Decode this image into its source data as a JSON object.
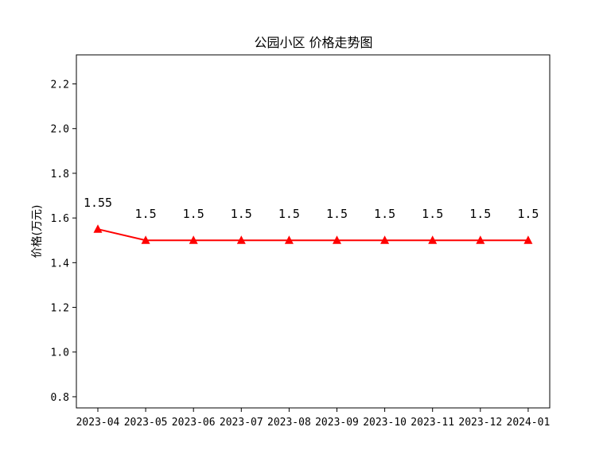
{
  "chart_data": {
    "type": "line",
    "title": "公园小区 价格走势图",
    "xlabel": "",
    "ylabel": "价格(万元)",
    "categories": [
      "2023-04",
      "2023-05",
      "2023-06",
      "2023-07",
      "2023-08",
      "2023-09",
      "2023-10",
      "2023-11",
      "2023-12",
      "2024-01"
    ],
    "series": [
      {
        "values": [
          1.55,
          1.5,
          1.5,
          1.5,
          1.5,
          1.5,
          1.5,
          1.5,
          1.5,
          1.5
        ],
        "data_labels": [
          "1.55",
          "1.5",
          "1.5",
          "1.5",
          "1.5",
          "1.5",
          "1.5",
          "1.5",
          "1.5",
          "1.5"
        ],
        "color": "#ff0000",
        "marker": "triangle-up"
      }
    ],
    "y_ticks": [
      "0.8",
      "1.0",
      "1.2",
      "1.4",
      "1.6",
      "1.8",
      "2.0",
      "2.2"
    ],
    "ylim": [
      0.75,
      2.33
    ],
    "grid": false,
    "legend": "none"
  }
}
